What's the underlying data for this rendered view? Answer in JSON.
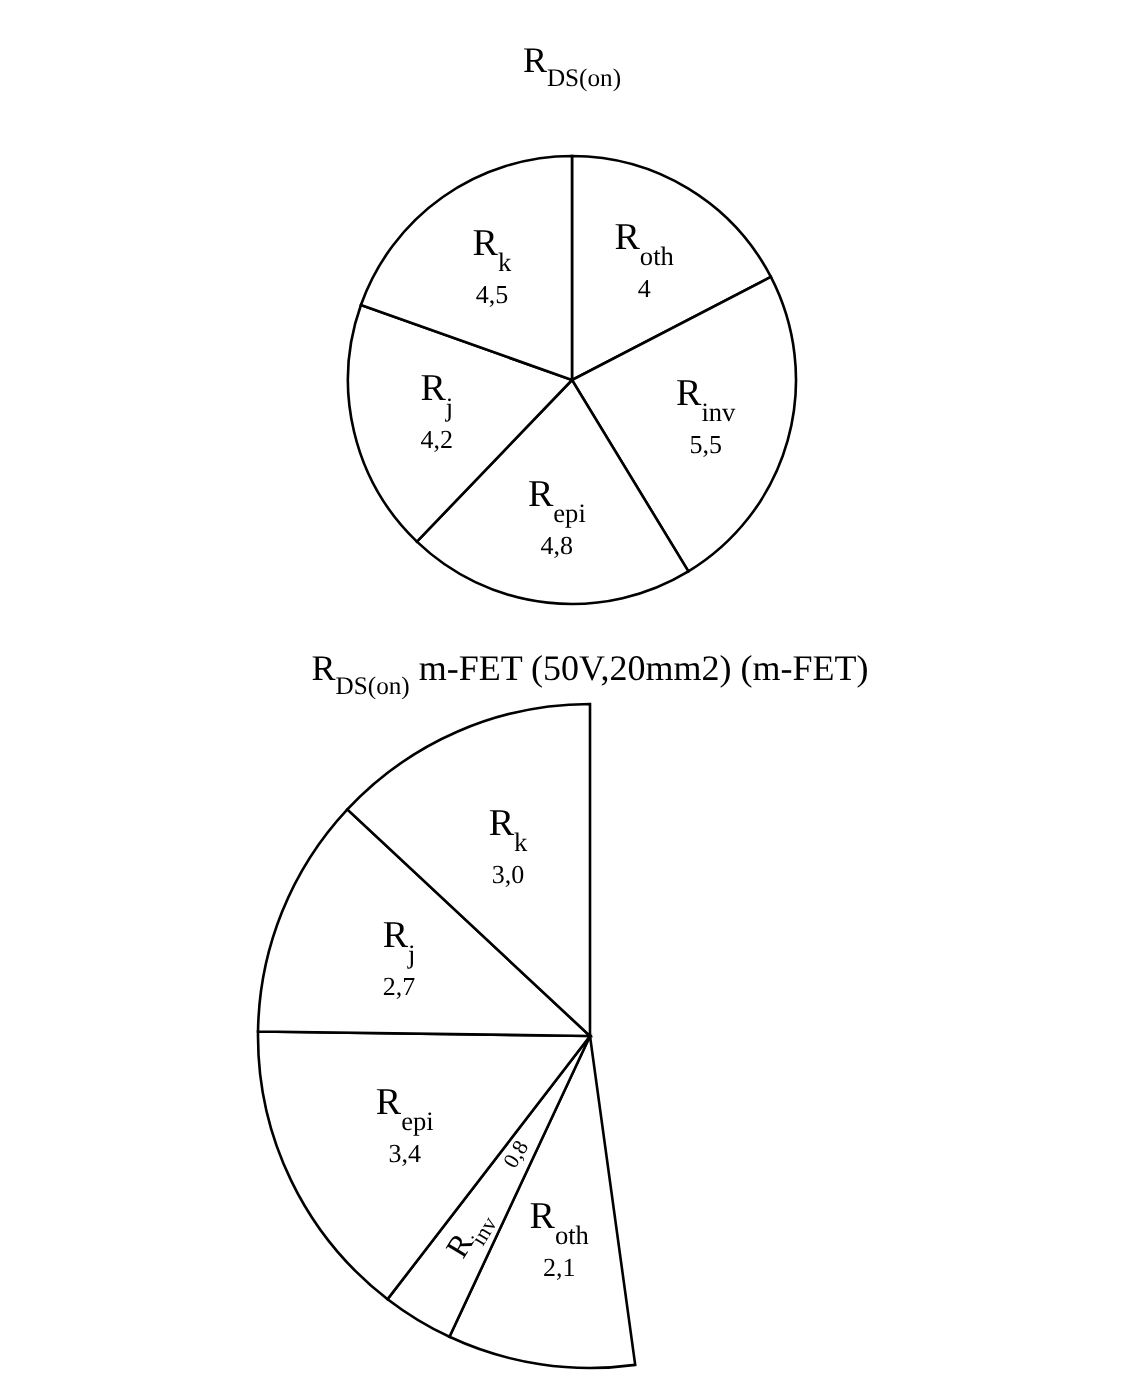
{
  "chart_data": [
    {
      "type": "pie",
      "title": "R$_{DS(on)}$",
      "categories": [
        "R$_{oth}$",
        "R$_{inv}$",
        "R$_{epi}$",
        "R$_{j}$",
        "R$_{k}$"
      ],
      "values": [
        4,
        5.5,
        4.8,
        4.2,
        4.5
      ],
      "value_labels": [
        "4",
        "5,5",
        "4,8",
        "4,2",
        "4,5"
      ],
      "colors": [
        "#ffffff",
        "#ffffff",
        "#ffffff",
        "#ffffff",
        "#ffffff"
      ]
    },
    {
      "type": "pie",
      "title": "R$_{DS(on)}$ m-FET (50V,20mm2) (m-FET)",
      "categories": [
        "R$_{oth}$",
        "R$_{inv}$",
        "R$_{epi}$",
        "R$_{j}$",
        "R$_{k}$"
      ],
      "values": [
        2.1,
        0.8,
        3.4,
        2.7,
        3.0
      ],
      "value_labels": [
        "2,1",
        "0,8",
        "3,4",
        "2,7",
        "3,0"
      ],
      "colors": [
        "#ffffff",
        "#ffffff",
        "#ffffff",
        "#ffffff",
        "#ffffff"
      ]
    }
  ]
}
